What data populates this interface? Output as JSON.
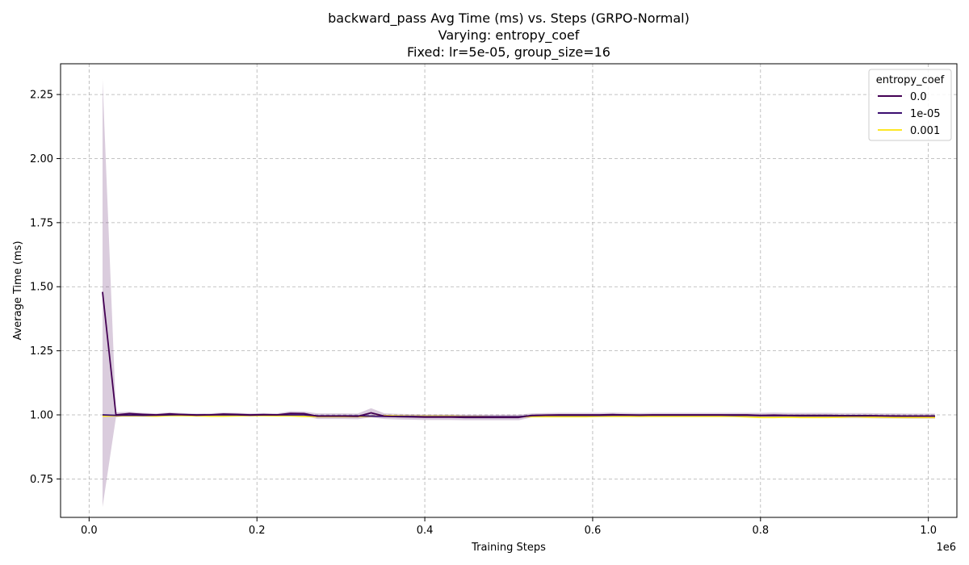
{
  "chart_data": {
    "type": "line",
    "title_lines": [
      "backward_pass Avg Time (ms) vs. Steps (GRPO-Normal)",
      "Varying: entropy_coef",
      "Fixed: lr=5e-05, group_size=16"
    ],
    "xlabel": "Training Steps",
    "ylabel": "Average Time (ms)",
    "x_offset_label": "1e6",
    "xlim": [
      -0.034,
      1.034
    ],
    "ylim": [
      0.6,
      2.37
    ],
    "x_ticks": [
      0.0,
      0.2,
      0.4,
      0.6,
      0.8,
      1.0
    ],
    "x_tick_labels": [
      "0.0",
      "0.2",
      "0.4",
      "0.6",
      "0.8",
      "1.0"
    ],
    "y_ticks": [
      0.75,
      1.0,
      1.25,
      1.5,
      1.75,
      2.0,
      2.25
    ],
    "y_tick_labels": [
      "0.75",
      "1.00",
      "1.25",
      "1.50",
      "1.75",
      "2.00",
      "2.25"
    ],
    "grid": true,
    "legend": {
      "title": "entropy_coef",
      "placement": "top-right"
    },
    "x": [
      0.016,
      0.032,
      0.048,
      0.064,
      0.08,
      0.096,
      0.112,
      0.128,
      0.144,
      0.16,
      0.176,
      0.192,
      0.208,
      0.224,
      0.24,
      0.256,
      0.272,
      0.288,
      0.304,
      0.32,
      0.336,
      0.352,
      0.368,
      0.384,
      0.4,
      0.416,
      0.432,
      0.448,
      0.464,
      0.48,
      0.496,
      0.512,
      0.528,
      0.544,
      0.56,
      0.576,
      0.592,
      0.608,
      0.624,
      0.64,
      0.656,
      0.672,
      0.688,
      0.704,
      0.72,
      0.736,
      0.752,
      0.768,
      0.784,
      0.8,
      0.816,
      0.832,
      0.848,
      0.864,
      0.88,
      0.896,
      0.912,
      0.928,
      0.944,
      0.96,
      0.976,
      0.992,
      1.008
    ],
    "series": [
      {
        "name": "0.0",
        "color": "#440154",
        "values": [
          1.48,
          1.0,
          1.005,
          1.002,
          1.0,
          1.004,
          1.001,
          0.999,
          1.0,
          1.003,
          1.002,
          1.0,
          1.001,
          1.0,
          1.006,
          1.005,
          0.995,
          0.995,
          0.995,
          0.994,
          1.008,
          0.995,
          0.993,
          0.992,
          0.991,
          0.991,
          0.991,
          0.99,
          0.99,
          0.99,
          0.99,
          0.99,
          0.998,
          0.999,
          1.0,
          1.0,
          1.0,
          1.0,
          1.001,
          1.0,
          0.999,
          1.0,
          1.0,
          1.0,
          1.0,
          1.0,
          1.0,
          1.0,
          1.0,
          0.998,
          0.999,
          0.998,
          0.998,
          0.998,
          0.998,
          0.997,
          0.997,
          0.997,
          0.996,
          0.996,
          0.995,
          0.995,
          0.995
        ],
        "band_low": [
          0.64,
          0.99,
          0.998,
          0.996,
          0.994,
          0.998,
          0.995,
          0.993,
          0.994,
          0.997,
          0.996,
          0.994,
          0.995,
          0.994,
          0.998,
          0.997,
          0.984,
          0.984,
          0.984,
          0.983,
          0.99,
          0.984,
          0.982,
          0.981,
          0.98,
          0.98,
          0.98,
          0.979,
          0.979,
          0.979,
          0.979,
          0.979,
          0.99,
          0.991,
          0.992,
          0.992,
          0.992,
          0.992,
          0.993,
          0.992,
          0.991,
          0.992,
          0.992,
          0.992,
          0.992,
          0.992,
          0.992,
          0.992,
          0.992,
          0.988,
          0.989,
          0.988,
          0.988,
          0.988,
          0.988,
          0.987,
          0.987,
          0.987,
          0.986,
          0.986,
          0.985,
          0.985,
          0.985
        ],
        "band_high": [
          2.31,
          1.01,
          1.012,
          1.008,
          1.006,
          1.01,
          1.007,
          1.005,
          1.006,
          1.009,
          1.008,
          1.006,
          1.007,
          1.006,
          1.014,
          1.013,
          1.006,
          1.006,
          1.006,
          1.005,
          1.026,
          1.006,
          1.004,
          1.003,
          1.002,
          1.002,
          1.002,
          1.001,
          1.001,
          1.001,
          1.001,
          1.001,
          1.006,
          1.007,
          1.008,
          1.008,
          1.008,
          1.008,
          1.009,
          1.008,
          1.007,
          1.008,
          1.008,
          1.008,
          1.008,
          1.008,
          1.008,
          1.008,
          1.008,
          1.008,
          1.009,
          1.008,
          1.008,
          1.008,
          1.008,
          1.007,
          1.007,
          1.007,
          1.006,
          1.006,
          1.005,
          1.005,
          1.005
        ]
      },
      {
        "name": "1e-05",
        "color": "#3b0f70",
        "values": [
          1.0,
          0.998,
          0.999,
          0.998,
          0.999,
          1.0,
          1.001,
          1.0,
          1.0,
          1.0,
          1.0,
          0.999,
          1.0,
          1.0,
          1.0,
          1.0,
          0.996,
          0.996,
          0.996,
          0.996,
          0.995,
          0.994,
          0.994,
          0.994,
          0.993,
          0.993,
          0.993,
          0.993,
          0.993,
          0.993,
          0.993,
          0.993,
          0.997,
          0.998,
          0.998,
          0.998,
          0.998,
          0.998,
          0.999,
          0.999,
          0.999,
          0.999,
          0.999,
          0.999,
          0.999,
          0.999,
          0.999,
          0.998,
          0.998,
          0.997,
          0.997,
          0.997,
          0.996,
          0.996,
          0.996,
          0.996,
          0.996,
          0.996,
          0.996,
          0.995,
          0.995,
          0.995,
          0.995
        ]
      },
      {
        "name": "0.001",
        "color": "#fde725",
        "values": [
          0.995,
          0.996,
          0.996,
          0.996,
          0.995,
          0.997,
          0.997,
          0.996,
          0.995,
          0.995,
          0.996,
          0.997,
          0.997,
          0.996,
          0.996,
          0.994,
          0.993,
          0.993,
          0.993,
          0.993,
          0.994,
          0.997,
          0.996,
          0.995,
          0.995,
          0.995,
          0.995,
          0.994,
          0.994,
          0.993,
          0.993,
          0.993,
          0.993,
          0.993,
          0.993,
          0.993,
          0.993,
          0.994,
          0.994,
          0.994,
          0.994,
          0.994,
          0.994,
          0.994,
          0.994,
          0.994,
          0.994,
          0.994,
          0.992,
          0.99,
          0.99,
          0.991,
          0.99,
          0.99,
          0.99,
          0.991,
          0.993,
          0.991,
          0.991,
          0.99,
          0.99,
          0.99,
          0.99
        ]
      }
    ]
  }
}
